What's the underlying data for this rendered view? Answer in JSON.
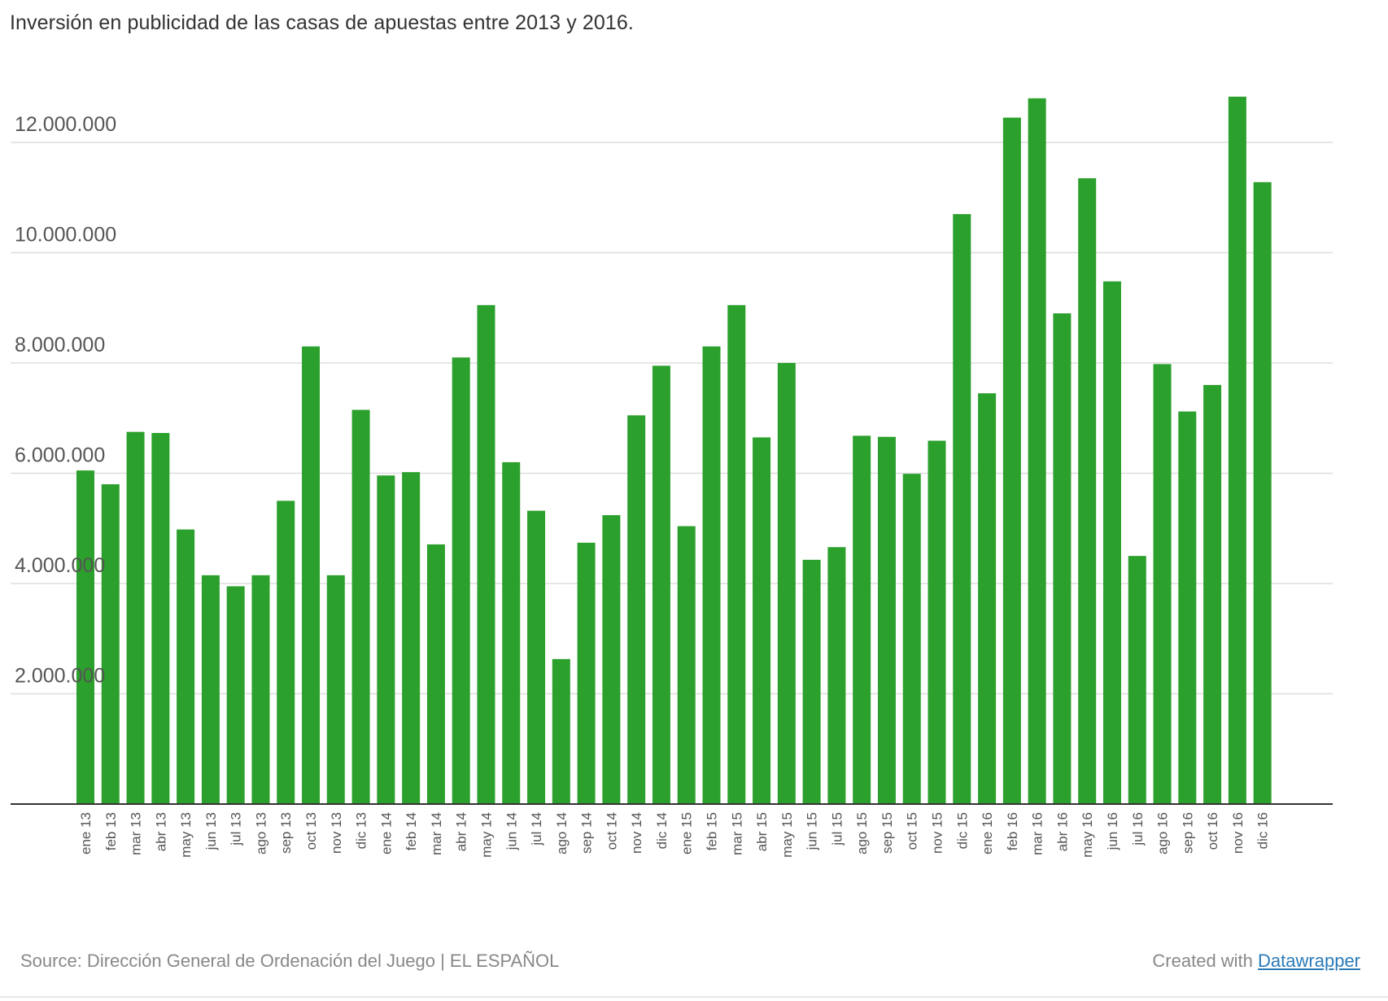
{
  "chart_data": {
    "type": "bar",
    "title": "Inversión en publicidad de las casas de apuestas entre 2013 y 2016.",
    "xlabel": "",
    "ylabel": "",
    "ylim": [
      0,
      12000000
    ],
    "yticks": [
      2000000,
      4000000,
      6000000,
      8000000,
      10000000,
      12000000
    ],
    "ytick_labels": [
      "2.000.000",
      "4.000.000",
      "6.000.000",
      "8.000.000",
      "10.000.000",
      "12.000.000"
    ],
    "grid": true,
    "categories": [
      "ene 13",
      "feb 13",
      "mar 13",
      "abr 13",
      "may 13",
      "jun 13",
      "jul 13",
      "ago 13",
      "sep 13",
      "oct 13",
      "nov 13",
      "dic 13",
      "ene 14",
      "feb 14",
      "mar 14",
      "abr 14",
      "may 14",
      "jun 14",
      "jul 14",
      "ago 14",
      "sep 14",
      "oct 14",
      "nov 14",
      "dic 14",
      "ene 15",
      "feb 15",
      "mar 15",
      "abr 15",
      "may 15",
      "jun 15",
      "jul 15",
      "ago 15",
      "sep 15",
      "oct 15",
      "nov 15",
      "dic 15",
      "ene 16",
      "feb 16",
      "mar 16",
      "abr 16",
      "may 16",
      "jun 16",
      "jul 16",
      "ago 16",
      "sep 16",
      "oct 16",
      "nov 16",
      "dic 16"
    ],
    "values": [
      6050000,
      5800000,
      6750000,
      6730000,
      4980000,
      4150000,
      3950000,
      4150000,
      5500000,
      8300000,
      4150000,
      7150000,
      5960000,
      6020000,
      4710000,
      8100000,
      9050000,
      6200000,
      5320000,
      2630000,
      4740000,
      5240000,
      7050000,
      7950000,
      5040000,
      8300000,
      9050000,
      6650000,
      8000000,
      4430000,
      4660000,
      6680000,
      6660000,
      5990000,
      6590000,
      10700000,
      7450000,
      12450000,
      12800000,
      8900000,
      11350000,
      9480000,
      4500000,
      7980000,
      7120000,
      7600000,
      12830000,
      11280000
    ],
    "colors": {
      "bar": "#2ca02c",
      "grid": "#dddddd",
      "axis": "#333333",
      "tick_text": "#555555"
    }
  },
  "footer": {
    "source": "Source: Dirección General de Ordenación del Juego | EL ESPAÑOL",
    "credit_prefix": "Created with",
    "credit_link": "Datawrapper"
  }
}
